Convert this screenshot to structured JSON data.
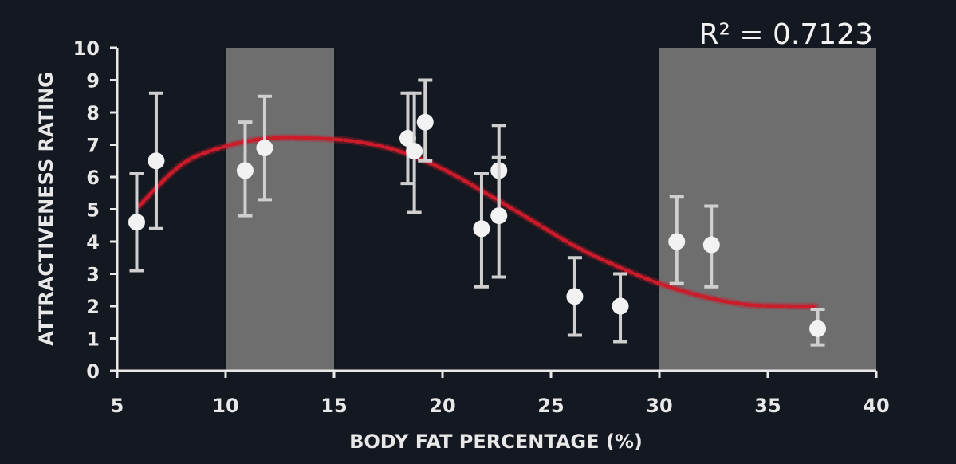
{
  "chart_data": {
    "type": "scatter",
    "title": "",
    "xlabel": "BODY FAT PERCENTAGE (%)",
    "ylabel": "ATTRACTIVENESS RATING",
    "xlim": [
      5,
      40
    ],
    "ylim": [
      0,
      10
    ],
    "xticks": [
      5,
      10,
      15,
      20,
      25,
      30,
      35,
      40
    ],
    "yticks": [
      0,
      1,
      2,
      3,
      4,
      5,
      6,
      7,
      8,
      9,
      10
    ],
    "grid": false,
    "annotation": "R² = 0.7123",
    "shaded_x_ranges": [
      [
        10,
        15
      ],
      [
        30,
        40
      ]
    ],
    "colors": {
      "background": "#141820",
      "axis": "#e8e8e8",
      "shade": "#6e6e6e",
      "points": "#f2f2f2",
      "trend": "#cc1b2a"
    },
    "points": [
      {
        "x": 5.9,
        "y": 4.6,
        "low": 3.1,
        "high": 6.1
      },
      {
        "x": 6.8,
        "y": 6.5,
        "low": 4.4,
        "high": 8.6
      },
      {
        "x": 10.9,
        "y": 6.2,
        "low": 4.8,
        "high": 7.7
      },
      {
        "x": 11.8,
        "y": 6.9,
        "low": 5.3,
        "high": 8.5
      },
      {
        "x": 18.4,
        "y": 7.2,
        "low": 5.8,
        "high": 8.6
      },
      {
        "x": 18.7,
        "y": 6.8,
        "low": 4.9,
        "high": 8.6
      },
      {
        "x": 19.2,
        "y": 7.7,
        "low": 6.5,
        "high": 9.0
      },
      {
        "x": 21.8,
        "y": 4.4,
        "low": 2.6,
        "high": 6.1
      },
      {
        "x": 22.6,
        "y": 6.2,
        "low": 4.8,
        "high": 7.6
      },
      {
        "x": 22.6,
        "y": 4.8,
        "low": 2.9,
        "high": 6.6
      },
      {
        "x": 26.1,
        "y": 2.3,
        "low": 1.1,
        "high": 3.5
      },
      {
        "x": 28.2,
        "y": 2.0,
        "low": 0.9,
        "high": 3.0
      },
      {
        "x": 30.8,
        "y": 4.0,
        "low": 2.7,
        "high": 5.4
      },
      {
        "x": 32.4,
        "y": 3.9,
        "low": 2.6,
        "high": 5.1
      },
      {
        "x": 37.3,
        "y": 1.3,
        "low": 0.8,
        "high": 1.9
      }
    ],
    "trendline": {
      "type": "polynomial",
      "x": [
        6,
        8,
        10,
        12,
        14,
        16,
        18,
        20,
        22,
        24,
        26,
        28,
        30,
        32,
        34,
        36,
        37.2
      ],
      "y": [
        5.1,
        6.4,
        6.95,
        7.2,
        7.2,
        7.1,
        6.8,
        6.25,
        5.5,
        4.7,
        3.9,
        3.25,
        2.7,
        2.3,
        2.05,
        2.0,
        2.0
      ]
    }
  }
}
